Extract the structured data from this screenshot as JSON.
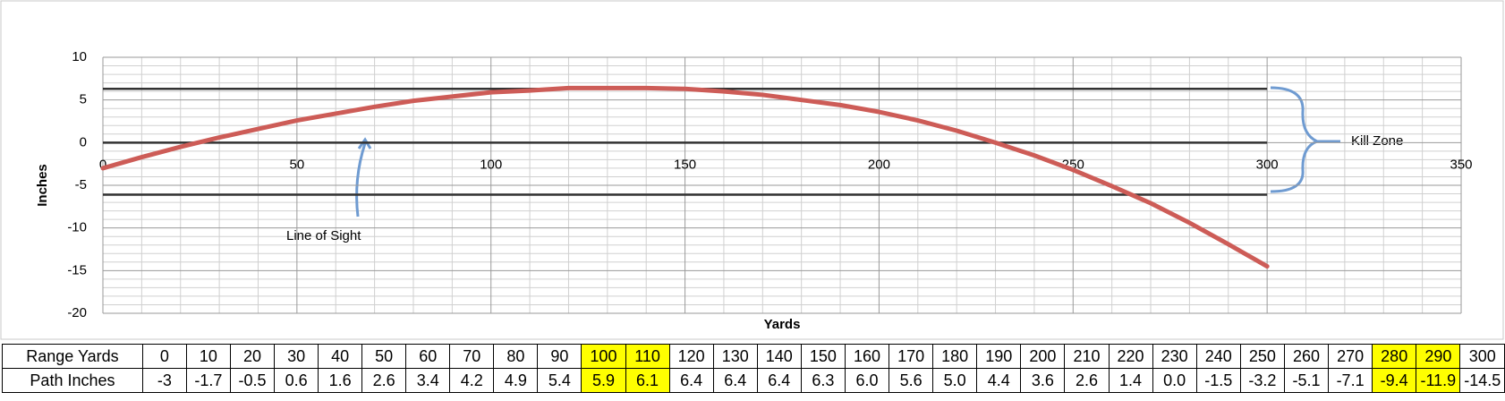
{
  "chart_data": {
    "type": "line",
    "x_label": "Yards",
    "y_label": "Inches",
    "x": [
      0,
      10,
      20,
      30,
      40,
      50,
      60,
      70,
      80,
      90,
      100,
      110,
      120,
      130,
      140,
      150,
      160,
      170,
      180,
      190,
      200,
      210,
      220,
      230,
      240,
      250,
      260,
      270,
      280,
      290,
      300
    ],
    "series": [
      {
        "name": "Path Inches",
        "color": "#cd5c57",
        "values": [
          -3,
          -1.7,
          -0.5,
          0.6,
          1.6,
          2.6,
          3.4,
          4.2,
          4.9,
          5.4,
          5.9,
          6.1,
          6.4,
          6.4,
          6.4,
          6.3,
          6.0,
          5.6,
          5.0,
          4.4,
          3.6,
          2.6,
          1.4,
          0.0,
          -1.5,
          -3.2,
          -5.1,
          -7.1,
          -9.4,
          -11.9,
          -14.5
        ],
        "value_labels": [
          "-3",
          "-1.7",
          "-0.5",
          "0.6",
          "1.6",
          "2.6",
          "3.4",
          "4.2",
          "4.9",
          "5.4",
          "5.9",
          "6.1",
          "6.4",
          "6.4",
          "6.4",
          "6.3",
          "6.0",
          "5.6",
          "5.0",
          "4.4",
          "3.6",
          "2.6",
          "1.4",
          "0.0",
          "-1.5",
          "-3.2",
          "-5.1",
          "-7.1",
          "-9.4",
          "-11.9",
          "-14.5"
        ]
      }
    ],
    "xlim": [
      0,
      350
    ],
    "xticks": [
      0,
      50,
      100,
      150,
      200,
      250,
      300,
      350
    ],
    "ylim": [
      -20,
      10
    ],
    "yticks": [
      -20,
      -15,
      -10,
      -5,
      0,
      5,
      10
    ],
    "grid": true,
    "minor_grid_divisions": 5,
    "reference_lines": [
      6.3,
      0,
      -6.1
    ],
    "annotations": [
      "Line of Sight",
      "Kill Zone"
    ],
    "table": {
      "row_labels": [
        "Range Yards",
        "Path Inches"
      ],
      "highlight_color": "#ffff00",
      "highlight_columns": [
        10,
        11,
        28,
        29
      ]
    }
  }
}
